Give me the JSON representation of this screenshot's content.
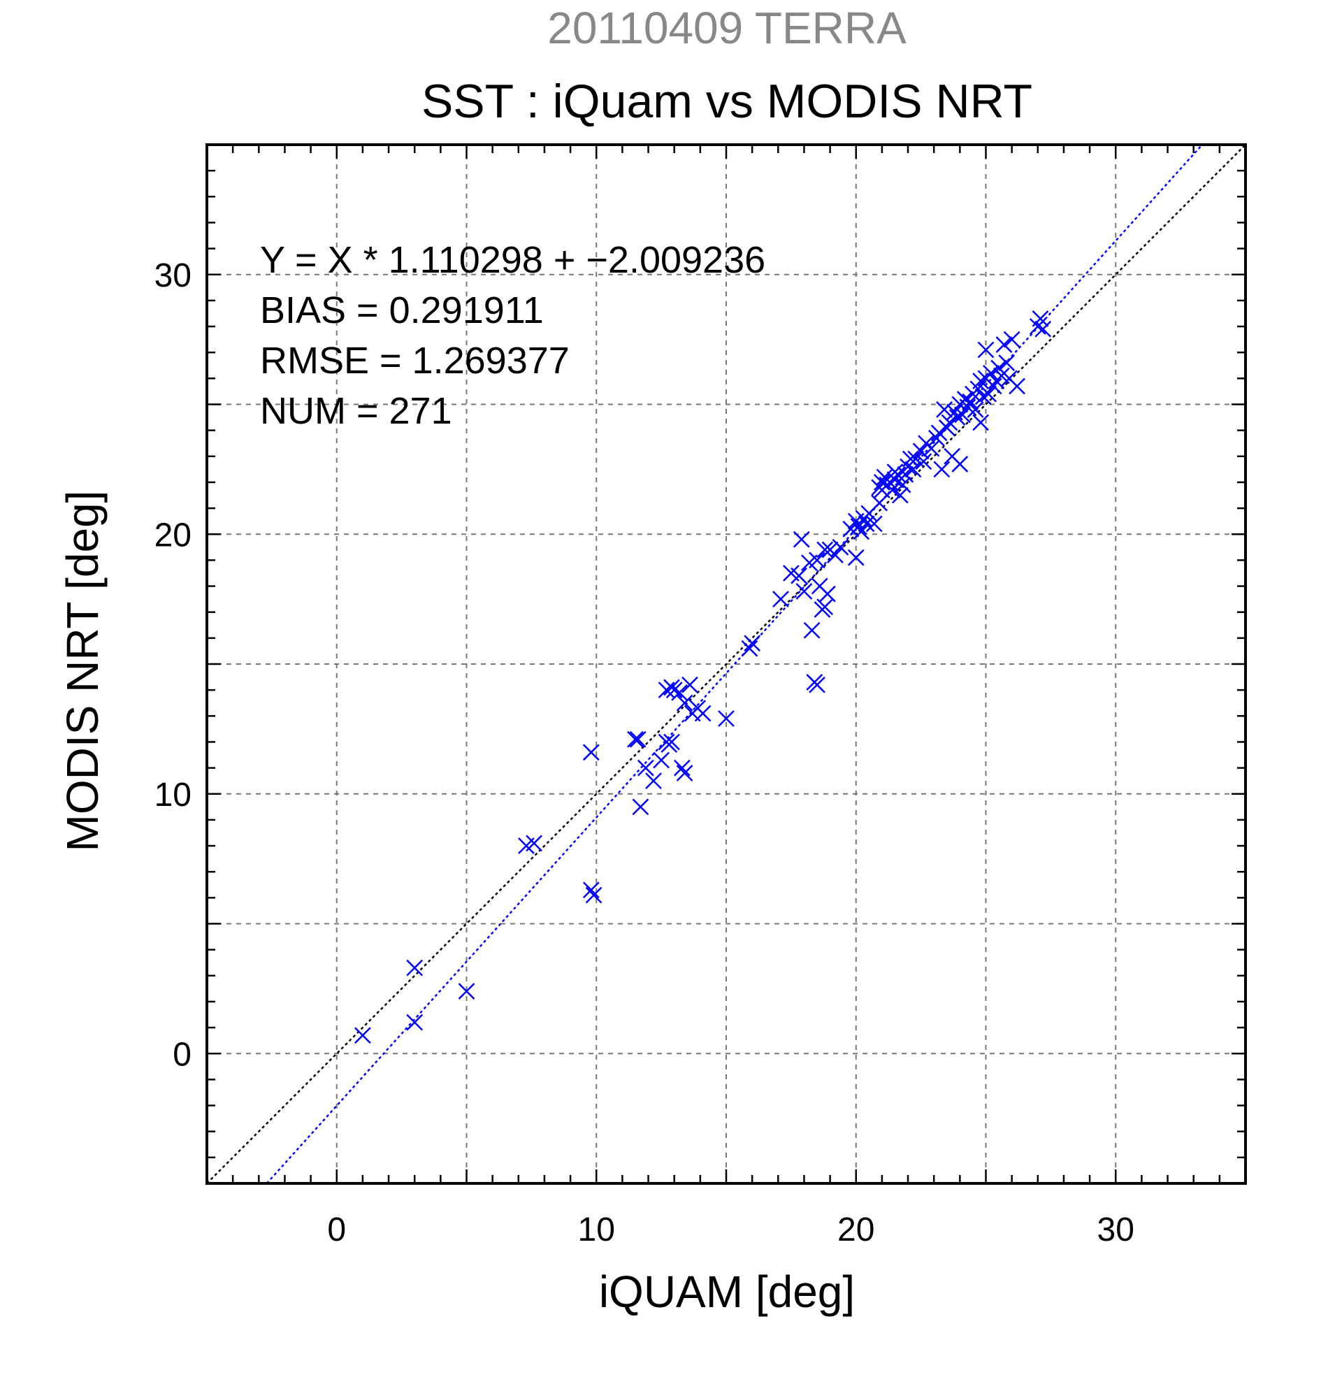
{
  "chart_data": {
    "type": "scatter",
    "title": "20110409 TERRA",
    "subtitle": "SST : iQuam vs MODIS NRT",
    "xlabel": "iQUAM [deg]",
    "ylabel": "MODIS NRT [deg]",
    "xlim": [
      -5,
      35
    ],
    "ylim": [
      -5,
      35
    ],
    "xticks": [
      0,
      10,
      20,
      30
    ],
    "yticks": [
      0,
      10,
      20,
      30
    ],
    "grid_step": 5,
    "grid": true,
    "marker_color": "#0000ff",
    "stats": [
      "Y = X * 1.110298 + −2.009236",
      "BIAS = 0.291911",
      "RMSE = 1.269377",
      "NUM = 271"
    ],
    "lines": [
      {
        "kind": "identity",
        "slope": 1.0,
        "intercept": 0.0,
        "color": "#000000"
      },
      {
        "kind": "regression",
        "slope": 1.110298,
        "intercept": -2.009236,
        "color": "#0000ff"
      }
    ],
    "points": [
      [
        1.0,
        0.7
      ],
      [
        3.0,
        3.3
      ],
      [
        3.0,
        1.2
      ],
      [
        5.0,
        2.4
      ],
      [
        7.3,
        8.0
      ],
      [
        7.6,
        8.1
      ],
      [
        9.8,
        11.6
      ],
      [
        9.8,
        6.3
      ],
      [
        9.9,
        6.1
      ],
      [
        11.5,
        12.1
      ],
      [
        11.6,
        12.1
      ],
      [
        11.7,
        9.5
      ],
      [
        11.9,
        11.0
      ],
      [
        12.2,
        10.5
      ],
      [
        12.5,
        11.3
      ],
      [
        12.7,
        12.0
      ],
      [
        12.8,
        11.9
      ],
      [
        12.9,
        12.0
      ],
      [
        12.7,
        14.0
      ],
      [
        12.9,
        14.1
      ],
      [
        13.0,
        14.0
      ],
      [
        13.2,
        13.9
      ],
      [
        13.4,
        13.5
      ],
      [
        13.3,
        11.0
      ],
      [
        13.4,
        10.8
      ],
      [
        13.6,
        14.2
      ],
      [
        13.7,
        13.1
      ],
      [
        13.9,
        13.3
      ],
      [
        14.1,
        13.1
      ],
      [
        15.0,
        12.9
      ],
      [
        15.9,
        15.6
      ],
      [
        16.0,
        15.8
      ],
      [
        17.1,
        17.5
      ],
      [
        17.5,
        18.5
      ],
      [
        17.8,
        18.4
      ],
      [
        17.9,
        19.8
      ],
      [
        18.0,
        17.8
      ],
      [
        18.3,
        16.3
      ],
      [
        18.4,
        14.3
      ],
      [
        18.5,
        14.2
      ],
      [
        18.2,
        18.9
      ],
      [
        18.5,
        19.0
      ],
      [
        18.6,
        18.0
      ],
      [
        18.7,
        17.1
      ],
      [
        18.8,
        17.2
      ],
      [
        18.9,
        17.7
      ],
      [
        18.8,
        19.4
      ],
      [
        19.0,
        19.4
      ],
      [
        19.2,
        19.2
      ],
      [
        19.4,
        19.5
      ],
      [
        19.8,
        20.2
      ],
      [
        20.0,
        20.5
      ],
      [
        20.0,
        19.1
      ],
      [
        20.1,
        20.3
      ],
      [
        20.2,
        20.1
      ],
      [
        20.3,
        20.6
      ],
      [
        20.5,
        20.8
      ],
      [
        20.4,
        20.4
      ],
      [
        20.7,
        20.4
      ],
      [
        20.9,
        21.2
      ],
      [
        20.9,
        21.8
      ],
      [
        21.0,
        22.0
      ],
      [
        21.0,
        21.7
      ],
      [
        21.1,
        22.2
      ],
      [
        21.2,
        21.9
      ],
      [
        21.3,
        22.0
      ],
      [
        21.4,
        21.7
      ],
      [
        21.5,
        22.1
      ],
      [
        21.5,
        22.4
      ],
      [
        21.6,
        22.3
      ],
      [
        21.7,
        21.5
      ],
      [
        21.8,
        21.9
      ],
      [
        21.9,
        22.3
      ],
      [
        22.0,
        22.6
      ],
      [
        22.1,
        22.9
      ],
      [
        22.2,
        22.5
      ],
      [
        22.3,
        22.9
      ],
      [
        22.5,
        23.2
      ],
      [
        22.6,
        22.8
      ],
      [
        22.7,
        23.5
      ],
      [
        22.9,
        23.3
      ],
      [
        23.1,
        23.7
      ],
      [
        23.2,
        23.9
      ],
      [
        23.3,
        22.5
      ],
      [
        23.4,
        24.8
      ],
      [
        23.5,
        24.1
      ],
      [
        23.6,
        24.3
      ],
      [
        23.7,
        23.0
      ],
      [
        23.8,
        24.7
      ],
      [
        23.9,
        24.5
      ],
      [
        24.0,
        22.7
      ],
      [
        24.0,
        25.0
      ],
      [
        24.1,
        24.6
      ],
      [
        24.2,
        25.2
      ],
      [
        24.3,
        24.9
      ],
      [
        24.4,
        25.1
      ],
      [
        24.5,
        25.4
      ],
      [
        24.6,
        24.8
      ],
      [
        24.7,
        25.6
      ],
      [
        24.8,
        24.3
      ],
      [
        24.8,
        25.9
      ],
      [
        24.9,
        25.3
      ],
      [
        25.0,
        26.0
      ],
      [
        25.0,
        27.1
      ],
      [
        25.1,
        25.4
      ],
      [
        25.2,
        26.2
      ],
      [
        25.3,
        25.7
      ],
      [
        25.4,
        25.9
      ],
      [
        25.5,
        26.4
      ],
      [
        25.6,
        26.1
      ],
      [
        25.7,
        27.3
      ],
      [
        25.8,
        26.6
      ],
      [
        25.9,
        26.0
      ],
      [
        26.0,
        27.5
      ],
      [
        26.2,
        25.7
      ],
      [
        27.0,
        28.0
      ],
      [
        27.1,
        28.3
      ],
      [
        27.2,
        27.9
      ]
    ]
  }
}
